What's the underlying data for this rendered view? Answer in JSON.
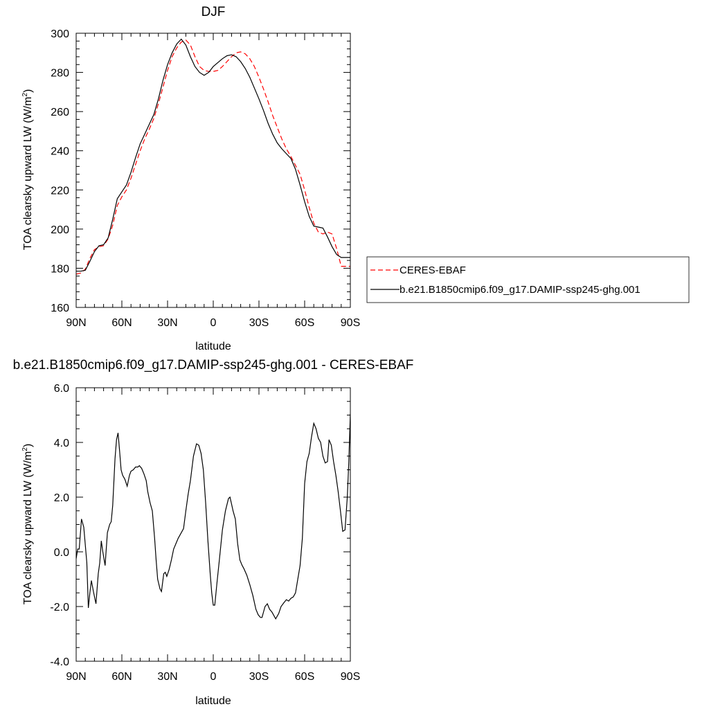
{
  "chart_data": [
    {
      "type": "line",
      "title": "DJF",
      "xlabel": "latitude",
      "ylabel_main": "TOA clearsky upward LW (W/m",
      "ylabel_sup": "2",
      "ylabel_close": ")",
      "xlim": [
        90,
        -90
      ],
      "ylim": [
        160,
        300
      ],
      "xticks": [
        90,
        60,
        30,
        0,
        -30,
        -60,
        -90
      ],
      "xtick_labels": [
        "90N",
        "60N",
        "30N",
        "0",
        "30S",
        "60S",
        "90S"
      ],
      "yticks": [
        160,
        180,
        200,
        220,
        240,
        260,
        280,
        300
      ],
      "ytick_labels": [
        "160",
        "180",
        "200",
        "220",
        "240",
        "260",
        "280",
        "300"
      ],
      "legend_position": "right",
      "series": [
        {
          "name": "CERES-EBAF",
          "color": "#ff0000",
          "dash": "dashed",
          "x": [
            90,
            87,
            84,
            81,
            78,
            75,
            72,
            69,
            66,
            63,
            60,
            57,
            54,
            51,
            48,
            45,
            42,
            39,
            36,
            33,
            30,
            27,
            24,
            21,
            18,
            15,
            12,
            9,
            6,
            3,
            0,
            -3,
            -6,
            -9,
            -12,
            -15,
            -18,
            -21,
            -24,
            -27,
            -30,
            -33,
            -36,
            -39,
            -42,
            -45,
            -48,
            -51,
            -54,
            -57,
            -60,
            -63,
            -66,
            -69,
            -72,
            -75,
            -78,
            -81,
            -84,
            -87,
            -90
          ],
          "y": [
            177.0,
            177.5,
            179.5,
            185.0,
            189.5,
            191.0,
            191.5,
            195.0,
            202.0,
            212.0,
            216.5,
            220.0,
            226.0,
            233.0,
            240.0,
            246.0,
            251.0,
            256.5,
            264.0,
            272.5,
            281.0,
            288.0,
            292.5,
            295.5,
            296.5,
            294.0,
            288.0,
            283.0,
            281.0,
            280.5,
            280.5,
            281.0,
            283.0,
            285.5,
            288.0,
            290.0,
            290.5,
            289.5,
            287.0,
            283.0,
            277.5,
            271.5,
            265.0,
            258.0,
            252.0,
            246.0,
            241.0,
            237.0,
            232.5,
            228.0,
            220.0,
            211.0,
            203.0,
            198.5,
            197.5,
            198.5,
            197.5,
            190.0,
            181.0,
            181.0,
            181.0
          ]
        },
        {
          "name": "b.e21.B1850cmip6.f09_g17.DAMIP-ssp245-ghg.001",
          "color": "#000000",
          "dash": "solid",
          "x": [
            90,
            87,
            84,
            81,
            78,
            75,
            72,
            69,
            66,
            63,
            60,
            57,
            54,
            51,
            48,
            45,
            42,
            39,
            36,
            33,
            30,
            27,
            24,
            21,
            18,
            15,
            12,
            9,
            6,
            3,
            0,
            -3,
            -6,
            -9,
            -12,
            -15,
            -18,
            -21,
            -24,
            -27,
            -30,
            -33,
            -36,
            -39,
            -42,
            -45,
            -48,
            -51,
            -54,
            -57,
            -60,
            -63,
            -66,
            -69,
            -72,
            -75,
            -78,
            -81,
            -84,
            -87,
            -90
          ],
          "y": [
            178.5,
            178.5,
            179.0,
            183.5,
            188.5,
            191.5,
            192.0,
            195.5,
            205.0,
            215.5,
            219.0,
            222.5,
            229.0,
            236.5,
            243.5,
            248.5,
            253.5,
            258.5,
            266.5,
            276.0,
            284.0,
            290.0,
            294.5,
            297.0,
            294.0,
            288.0,
            283.0,
            280.0,
            278.5,
            280.0,
            283.0,
            285.0,
            287.0,
            288.5,
            289.0,
            288.0,
            285.5,
            282.0,
            277.5,
            272.0,
            266.5,
            260.5,
            254.0,
            248.5,
            244.0,
            241.0,
            238.5,
            236.0,
            230.5,
            222.5,
            214.0,
            206.5,
            201.5,
            201.0,
            200.5,
            196.0,
            191.0,
            187.0,
            185.5,
            185.5,
            185.5
          ]
        }
      ]
    },
    {
      "type": "line",
      "title": "b.e21.B1850cmip6.f09_g17.DAMIP-ssp245-ghg.001 - CERES-EBAF",
      "xlabel": "latitude",
      "ylabel_main": "TOA clearsky upward LW (W/m",
      "ylabel_sup": "2",
      "ylabel_close": ")",
      "xlim": [
        90,
        -90
      ],
      "ylim": [
        -4.0,
        6.0
      ],
      "xticks": [
        90,
        60,
        30,
        0,
        -30,
        -60,
        -90
      ],
      "xtick_labels": [
        "90N",
        "60N",
        "30N",
        "0",
        "30S",
        "60S",
        "90S"
      ],
      "yticks": [
        -4,
        -2,
        0,
        2,
        4,
        6
      ],
      "ytick_labels": [
        "-4.0",
        "-2.0",
        "0.0",
        "2.0",
        "4.0",
        "6.0"
      ],
      "series": [
        {
          "name": "",
          "color": "#000000",
          "dash": "solid",
          "x": [
            90,
            89,
            88,
            86.5,
            85,
            83,
            82,
            81,
            80,
            78.5,
            77,
            75.5,
            74.5,
            73.5,
            72.5,
            71,
            69.5,
            68,
            67,
            66,
            64.5,
            63.5,
            62.5,
            61.5,
            60.5,
            59.5,
            58,
            56.5,
            55,
            54,
            52.5,
            51,
            49.5,
            48.5,
            47,
            45.5,
            44,
            43,
            41.5,
            40,
            38.5,
            37.5,
            36.5,
            35,
            34,
            32.5,
            31.5,
            30.5,
            29,
            27.5,
            26,
            24.5,
            23,
            21,
            19.5,
            18,
            16.5,
            15,
            13,
            11,
            9.5,
            8,
            6.5,
            5,
            3.5,
            2,
            1,
            0,
            -1,
            -2.5,
            -4,
            -6,
            -8,
            -10,
            -11,
            -12,
            -13,
            -14.5,
            -16,
            -17.5,
            -19,
            -20,
            -22,
            -24,
            -26,
            -28,
            -29.5,
            -31,
            -32,
            -33,
            -34,
            -35.5,
            -37,
            -38.5,
            -40,
            -41,
            -43,
            -44.5,
            -46.5,
            -48,
            -49.5,
            -51,
            -52.5,
            -54,
            -55.5,
            -57,
            -58.5,
            -60,
            -61.5,
            -63,
            -64.5,
            -66,
            -67.5,
            -69,
            -70.5,
            -72,
            -73.5,
            -75,
            -76,
            -77.5,
            -79,
            -80.5,
            -82,
            -83.5,
            -85,
            -86.5,
            -88,
            -89,
            -90
          ],
          "y": [
            -0.25,
            0.1,
            0.1,
            1.2,
            0.9,
            -0.4,
            -2.05,
            -1.5,
            -1.05,
            -1.5,
            -1.9,
            -0.8,
            -0.4,
            0.4,
            0.0,
            -0.5,
            0.7,
            1.0,
            1.1,
            1.7,
            3.4,
            4.1,
            4.35,
            3.7,
            3.0,
            2.8,
            2.65,
            2.4,
            2.8,
            2.95,
            3.0,
            3.1,
            3.1,
            3.15,
            3.05,
            2.85,
            2.6,
            2.2,
            1.8,
            1.5,
            0.5,
            -0.3,
            -1.0,
            -1.35,
            -1.45,
            -0.8,
            -0.75,
            -0.9,
            -0.65,
            -0.3,
            0.1,
            0.3,
            0.5,
            0.7,
            0.85,
            1.5,
            2.1,
            2.6,
            3.5,
            3.95,
            3.9,
            3.6,
            3.0,
            1.8,
            0.4,
            -0.8,
            -1.5,
            -1.95,
            -1.95,
            -1.1,
            -0.3,
            0.8,
            1.5,
            1.95,
            2.0,
            1.75,
            1.5,
            1.2,
            0.3,
            -0.3,
            -0.5,
            -0.6,
            -0.85,
            -1.2,
            -1.6,
            -2.1,
            -2.3,
            -2.4,
            -2.4,
            -2.2,
            -2.0,
            -1.9,
            -2.1,
            -2.2,
            -2.35,
            -2.45,
            -2.25,
            -2.0,
            -1.85,
            -1.75,
            -1.8,
            -1.7,
            -1.65,
            -1.5,
            -1.0,
            -0.5,
            0.5,
            2.5,
            3.3,
            3.6,
            4.2,
            4.7,
            4.5,
            4.15,
            4.0,
            3.5,
            3.25,
            3.3,
            4.1,
            3.9,
            3.3,
            2.8,
            2.2,
            1.5,
            0.75,
            0.8,
            2.0,
            3.3,
            5.05
          ]
        }
      ]
    }
  ]
}
